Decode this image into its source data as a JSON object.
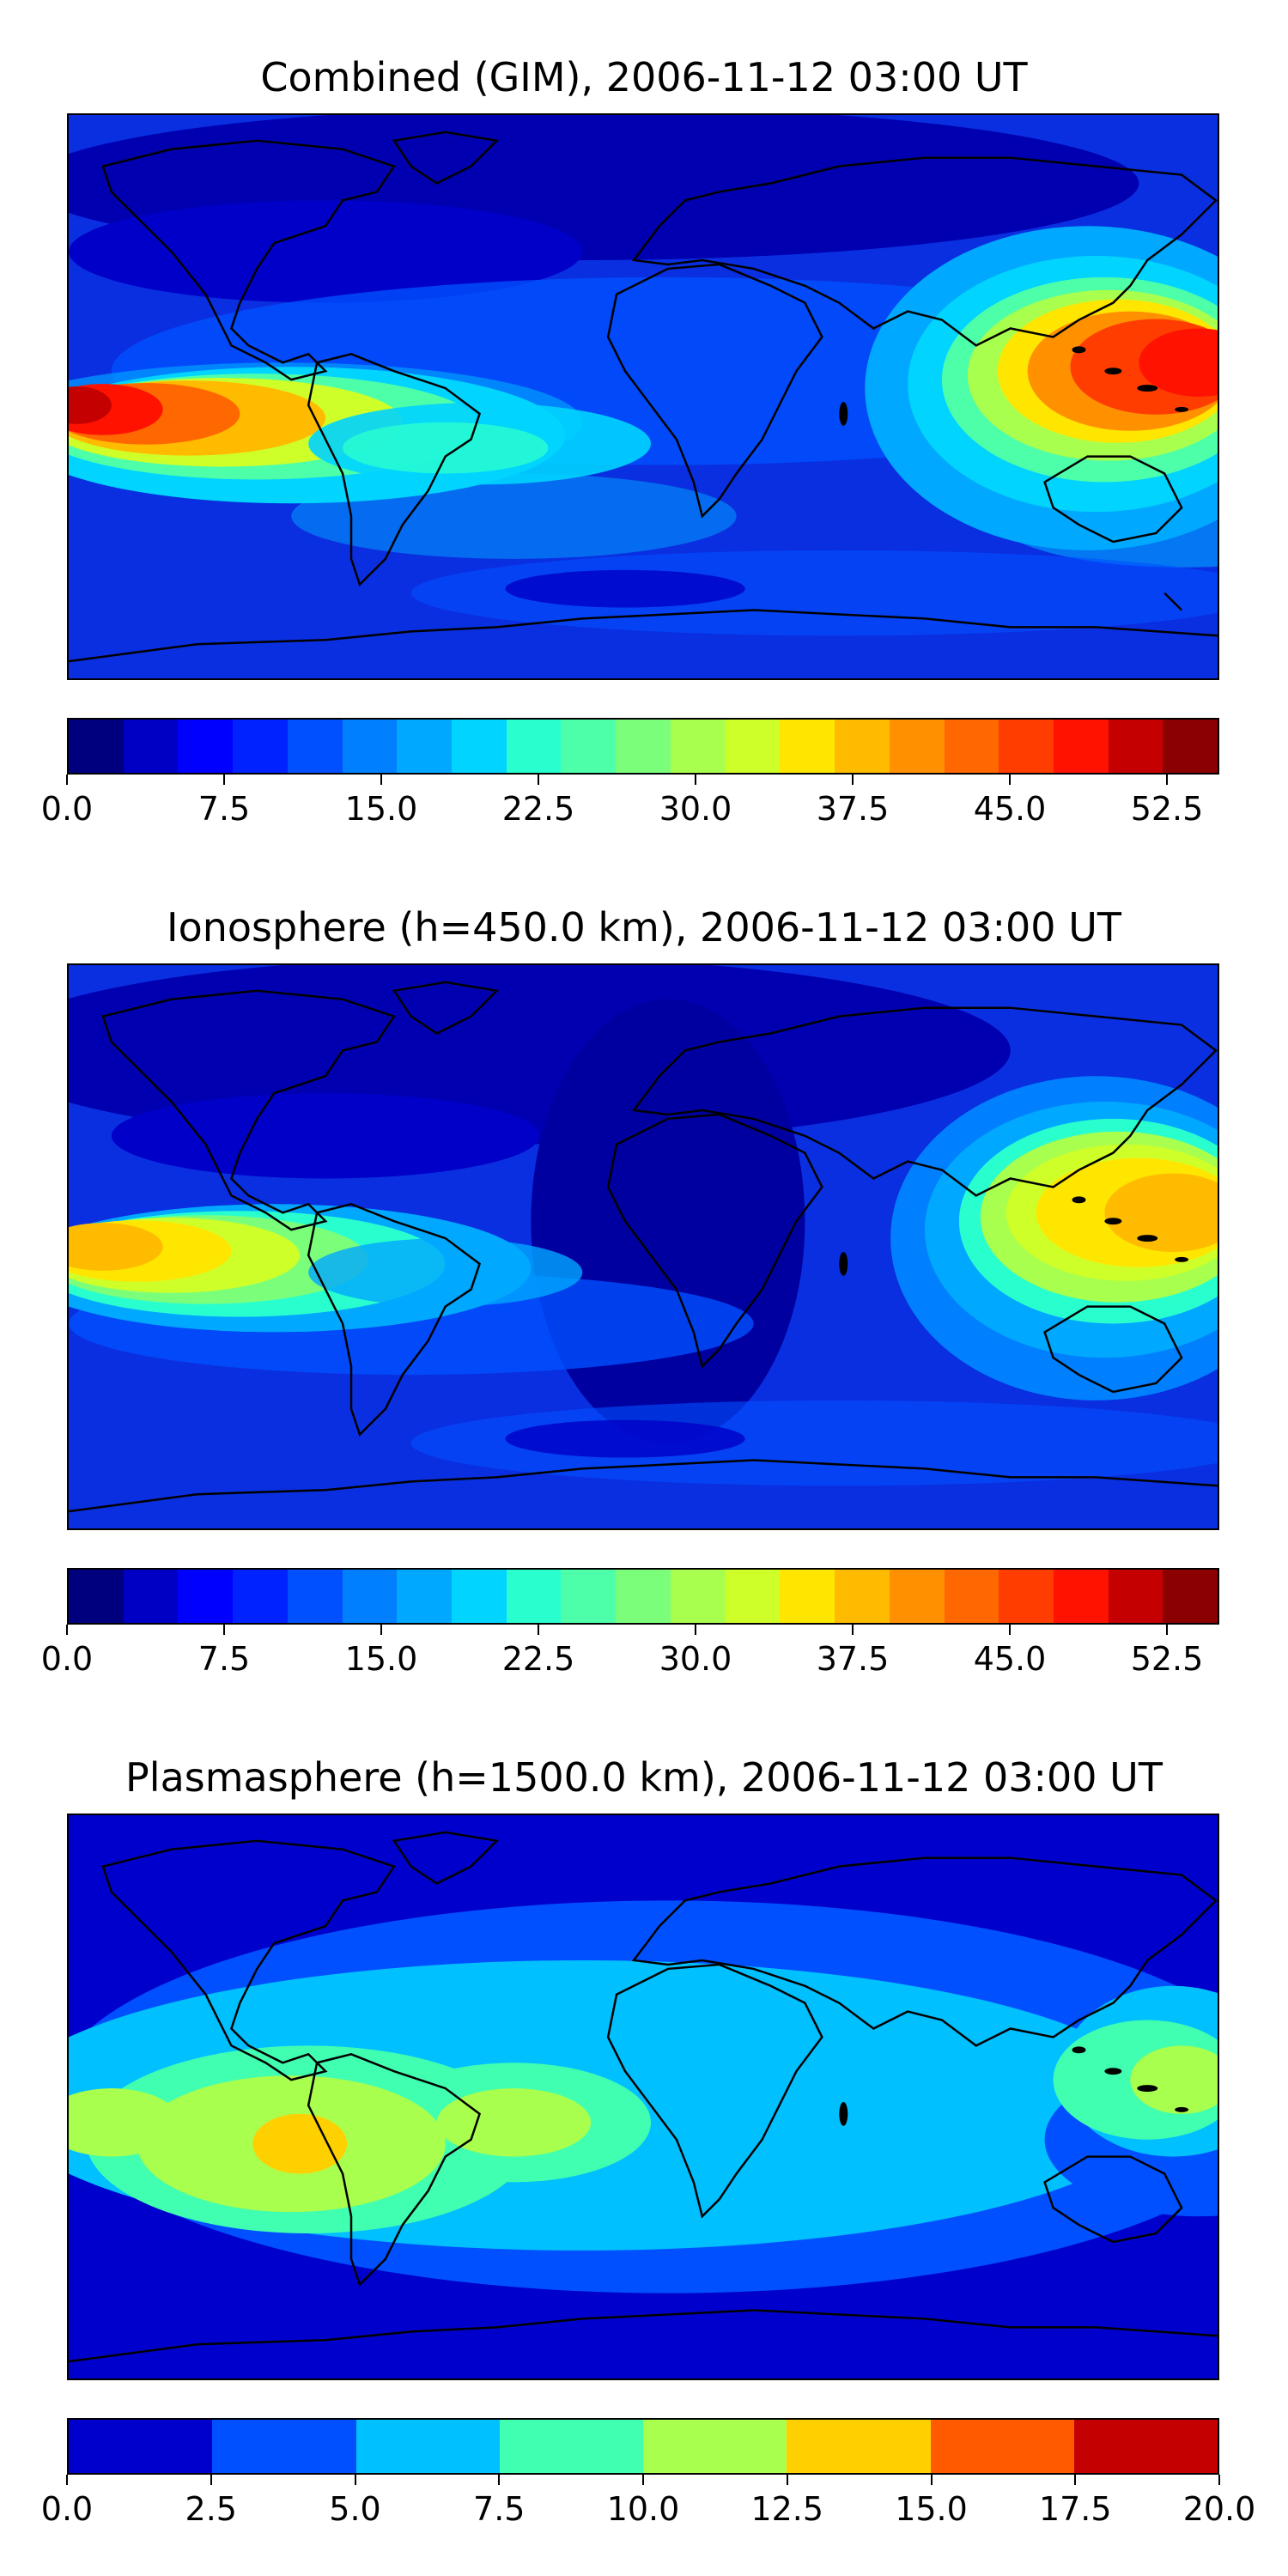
{
  "panels": [
    {
      "title": "Combined (GIM), 2006-11-12 03:00 UT",
      "colorbar": {
        "colors": [
          "#00007f",
          "#0000c4",
          "#0000ff",
          "#0022ff",
          "#0050ff",
          "#0080ff",
          "#00a8ff",
          "#00d4ff",
          "#29ffce",
          "#4dffa9",
          "#7bff7b",
          "#a9ff4d",
          "#ceff29",
          "#ffe600",
          "#ffbb00",
          "#ff9100",
          "#ff6800",
          "#ff3d00",
          "#ff1300",
          "#c40000",
          "#8b0000"
        ],
        "min": 0.0,
        "max": 55.0,
        "tick_values": [
          0.0,
          7.5,
          15.0,
          22.5,
          30.0,
          37.5,
          45.0,
          52.5
        ],
        "tick_labels": [
          "0.0",
          "7.5",
          "15.0",
          "22.5",
          "30.0",
          "37.5",
          "45.0",
          "52.5"
        ]
      }
    },
    {
      "title": "Ionosphere  (h=450.0 km), 2006-11-12 03:00 UT",
      "colorbar": {
        "colors": [
          "#00007f",
          "#0000c4",
          "#0000ff",
          "#0022ff",
          "#0050ff",
          "#0080ff",
          "#00a8ff",
          "#00d4ff",
          "#29ffce",
          "#4dffa9",
          "#7bff7b",
          "#a9ff4d",
          "#ceff29",
          "#ffe600",
          "#ffbb00",
          "#ff9100",
          "#ff6800",
          "#ff3d00",
          "#ff1300",
          "#c40000",
          "#8b0000"
        ],
        "min": 0.0,
        "max": 55.0,
        "tick_values": [
          0.0,
          7.5,
          15.0,
          22.5,
          30.0,
          37.5,
          45.0,
          52.5
        ],
        "tick_labels": [
          "0.0",
          "7.5",
          "15.0",
          "22.5",
          "30.0",
          "37.5",
          "45.0",
          "52.5"
        ]
      }
    },
    {
      "title": "Plasmasphere (h=1500.0 km), 2006-11-12 03:00 UT",
      "colorbar": {
        "colors": [
          "#0000cd",
          "#0050ff",
          "#00c0ff",
          "#40ffb0",
          "#a9ff4d",
          "#ffd000",
          "#ff5a00",
          "#c40000"
        ],
        "min": 0.0,
        "max": 20.0,
        "tick_values": [
          0.0,
          2.5,
          5.0,
          7.5,
          10.0,
          12.5,
          15.0,
          17.5,
          20.0
        ],
        "tick_labels": [
          "0.0",
          "2.5",
          "5.0",
          "7.5",
          "10.0",
          "12.5",
          "15.0",
          "17.5",
          "20.0"
        ]
      }
    }
  ]
}
